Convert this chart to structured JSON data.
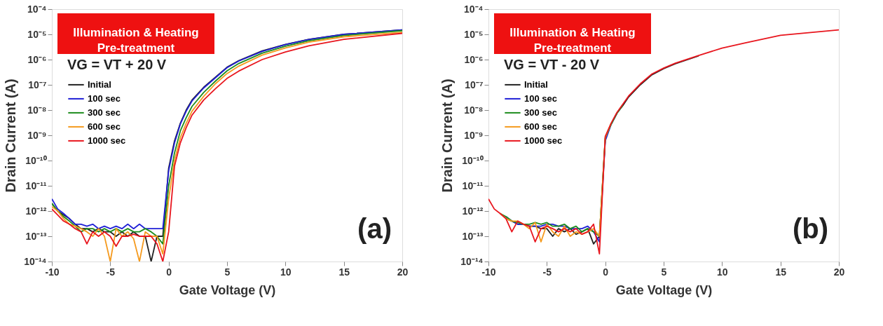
{
  "chart_data": [
    {
      "type": "line",
      "xlabel": "Gate Voltage (V)",
      "ylabel": "Drain Current (A)",
      "log": "y",
      "legend": "top left",
      "annotations": [
        "Illumination & Heating\nPre-treatment",
        "VG = VT + 20 V",
        "(a)"
      ],
      "xlim": [
        -10,
        20
      ],
      "xticks": [
        -10,
        -5,
        0,
        5,
        10,
        15,
        20
      ],
      "ylim": [
        1e-14,
        0.0001
      ],
      "yticks": [
        {
          "value": 1e-14,
          "label": "10⁻¹⁴"
        },
        {
          "value": 1e-13,
          "label": "10⁻¹³"
        },
        {
          "value": 1e-12,
          "label": "10⁻¹²"
        },
        {
          "value": 1e-11,
          "label": "10⁻¹¹"
        },
        {
          "value": 1e-10,
          "label": "10⁻¹⁰"
        },
        {
          "value": 1e-09,
          "label": "10⁻⁹"
        },
        {
          "value": 1e-08,
          "label": "10⁻⁸"
        },
        {
          "value": 1e-07,
          "label": "10⁻⁷"
        },
        {
          "value": 1e-06,
          "label": "10⁻⁶"
        },
        {
          "value": 1e-05,
          "label": "10⁻⁵"
        },
        {
          "value": 0.0001,
          "label": "10⁻⁴"
        }
      ],
      "x": [
        -10,
        -9.5,
        -9,
        -8.5,
        -8,
        -7.5,
        -7,
        -6.5,
        -6,
        -5.5,
        -5,
        -4.5,
        -4,
        -3.5,
        -3,
        -2.5,
        -2,
        -1.5,
        -1,
        -0.5,
        0,
        0.5,
        1,
        1.5,
        2,
        3,
        4,
        5,
        6,
        8,
        10,
        12,
        15,
        20
      ],
      "series": [
        {
          "name": "Initial",
          "color": "#222222",
          "values": [
            2e-12,
            1e-12,
            7e-13,
            5e-13,
            3e-13,
            2e-13,
            2e-13,
            1.5e-13,
            2e-13,
            1.5e-13,
            1.5e-13,
            1e-13,
            1.5e-13,
            1e-13,
            1.5e-13,
            1e-13,
            1e-13,
            1e-14,
            1e-13,
            1e-13,
            5e-11,
            6e-10,
            3e-09,
            1e-08,
            2.5e-08,
            8e-08,
            2e-07,
            5e-07,
            9e-07,
            2.2e-06,
            4e-06,
            6.3e-06,
            1e-05,
            1.5e-05
          ]
        },
        {
          "name": "100 sec",
          "color": "#1f1fd6",
          "values": [
            3e-12,
            1.2e-12,
            8e-13,
            5e-13,
            3e-13,
            3e-13,
            2.5e-13,
            3e-13,
            2e-13,
            2.5e-13,
            2e-13,
            2.5e-13,
            2e-13,
            3e-13,
            2e-13,
            3e-13,
            2e-13,
            2e-13,
            2e-13,
            2e-13,
            4e-11,
            5e-10,
            2.8e-09,
            9e-09,
            2.3e-08,
            7.5e-08,
            1.9e-07,
            4.8e-07,
            8.8e-07,
            2.1e-06,
            3.9e-06,
            6.2e-06,
            1e-05,
            1.5e-05
          ]
        },
        {
          "name": "300 sec",
          "color": "#1e8c1e",
          "values": [
            2e-12,
            1e-12,
            6e-13,
            4e-13,
            2.5e-13,
            1.5e-13,
            2e-13,
            2e-13,
            1.5e-13,
            2e-13,
            1.5e-13,
            2e-13,
            1.5e-13,
            2e-13,
            1.5e-13,
            1.5e-13,
            2e-13,
            1.5e-13,
            1e-13,
            5e-14,
            1e-11,
            2e-10,
            1.5e-09,
            5e-09,
            1.4e-08,
            5e-08,
            1.4e-07,
            3.6e-07,
            7e-07,
            1.8e-06,
            3.4e-06,
            5.6e-06,
            9e-06,
            1.4e-05
          ]
        },
        {
          "name": "600 sec",
          "color": "#f59a1e",
          "values": [
            1.5e-12,
            1e-12,
            5e-13,
            3e-13,
            2.5e-13,
            2e-13,
            1.5e-13,
            1e-13,
            2e-13,
            1e-13,
            1e-14,
            2e-13,
            1e-13,
            1.5e-13,
            8e-14,
            1e-14,
            1.5e-13,
            1e-13,
            1e-13,
            2e-14,
            3e-12,
            1e-10,
            8e-10,
            3e-09,
            9e-09,
            3.5e-08,
            1.1e-07,
            2.8e-07,
            5.5e-07,
            1.5e-06,
            2.9e-06,
            4.9e-06,
            8e-06,
            1.2e-05
          ]
        },
        {
          "name": "1000 sec",
          "color": "#e8161e",
          "values": [
            1.2e-12,
            7e-13,
            4e-13,
            3e-13,
            2e-13,
            1.5e-13,
            5e-14,
            1.5e-13,
            1e-13,
            1.5e-13,
            1e-13,
            4e-14,
            1e-13,
            1e-13,
            1.2e-13,
            1e-13,
            1e-13,
            1e-13,
            5e-14,
            1e-14,
            1.5e-13,
            6e-11,
            5e-10,
            2e-09,
            6.3e-09,
            2.5e-08,
            7e-08,
            1.8e-07,
            3.5e-07,
            1e-06,
            2e-06,
            3.5e-06,
            6.3e-06,
            1.1e-05
          ]
        }
      ]
    },
    {
      "type": "line",
      "xlabel": "Gate Voltage (V)",
      "ylabel": "Drain Current (A)",
      "log": "y",
      "legend": "top left",
      "annotations": [
        "Illumination & Heating\nPre-treatment",
        "VG = VT - 20 V",
        "(b)"
      ],
      "xlim": [
        -10,
        20
      ],
      "xticks": [
        -10,
        -5,
        0,
        5,
        10,
        15,
        20
      ],
      "ylim": [
        1e-14,
        0.0001
      ],
      "yticks": [
        {
          "value": 1e-14,
          "label": "10⁻¹⁴"
        },
        {
          "value": 1e-13,
          "label": "10⁻¹³"
        },
        {
          "value": 1e-12,
          "label": "10⁻¹²"
        },
        {
          "value": 1e-11,
          "label": "10⁻¹¹"
        },
        {
          "value": 1e-10,
          "label": "10⁻¹⁰"
        },
        {
          "value": 1e-09,
          "label": "10⁻⁹"
        },
        {
          "value": 1e-08,
          "label": "10⁻⁸"
        },
        {
          "value": 1e-07,
          "label": "10⁻⁷"
        },
        {
          "value": 1e-06,
          "label": "10⁻⁶"
        },
        {
          "value": 1e-05,
          "label": "10⁻⁵"
        },
        {
          "value": 0.0001,
          "label": "10⁻⁴"
        }
      ],
      "x": [
        -10,
        -9.5,
        -9,
        -8.5,
        -8,
        -7.5,
        -7,
        -6.5,
        -6,
        -5.5,
        -5,
        -4.5,
        -4,
        -3.5,
        -3,
        -2.5,
        -2,
        -1.5,
        -1,
        -0.5,
        0,
        0.5,
        1,
        1.5,
        2,
        3,
        4,
        5,
        6,
        8,
        10,
        12,
        15,
        20
      ],
      "series": [
        {
          "name": "Initial",
          "color": "#222222",
          "values": [
            null,
            null,
            null,
            5e-13,
            4e-13,
            3e-13,
            3e-13,
            2.5e-13,
            2.5e-13,
            2e-13,
            2e-13,
            1e-13,
            2e-13,
            1.5e-13,
            2e-13,
            1.2e-13,
            1.5e-13,
            2e-13,
            5e-14,
            1e-13,
            7e-10,
            2.8e-09,
            7.5e-09,
            1.5e-08,
            3.3e-08,
            1e-07,
            2.5e-07,
            4.4e-07,
            6.9e-07,
            1.4e-06,
            null,
            null,
            null,
            null
          ]
        },
        {
          "name": "100 sec",
          "color": "#1f1fd6",
          "values": [
            null,
            null,
            null,
            6e-13,
            4e-13,
            3e-13,
            3e-13,
            2.5e-13,
            2.5e-13,
            2.5e-13,
            3e-13,
            3e-13,
            2.5e-13,
            2.5e-13,
            2e-13,
            2e-13,
            2e-13,
            2.5e-13,
            1.5e-13,
            6e-14,
            6e-10,
            2.7e-09,
            7.5e-09,
            null,
            null,
            null,
            null,
            null,
            null,
            null,
            null,
            null,
            null,
            null
          ]
        },
        {
          "name": "300 sec",
          "color": "#1e8c1e",
          "values": [
            null,
            null,
            8e-13,
            6e-13,
            4e-13,
            3.5e-13,
            3e-13,
            3e-13,
            3.5e-13,
            3e-13,
            3.5e-13,
            2.5e-13,
            2.5e-13,
            3e-13,
            2e-13,
            2.5e-13,
            1.5e-13,
            2e-13,
            1.5e-13,
            1e-13,
            8e-10,
            2.7e-09,
            7.5e-09,
            1.6e-08,
            null,
            null,
            null,
            null,
            null,
            null,
            null,
            null,
            null,
            null
          ]
        },
        {
          "name": "600 sec",
          "color": "#f59a1e",
          "values": [
            null,
            null,
            8e-13,
            5e-13,
            4e-13,
            4e-13,
            3e-13,
            2e-13,
            3.5e-13,
            6e-14,
            3e-13,
            1.5e-13,
            1e-13,
            2.5e-13,
            1e-13,
            1.5e-13,
            1.2e-13,
            1.5e-13,
            2e-13,
            1e-13,
            8e-10,
            3e-09,
            null,
            null,
            null,
            null,
            null,
            null,
            null,
            null,
            null,
            null,
            null,
            null
          ]
        },
        {
          "name": "1000 sec",
          "color": "#e8161e",
          "values": [
            3e-12,
            1.2e-12,
            8e-13,
            5e-13,
            1.5e-13,
            4e-13,
            3e-13,
            2.5e-13,
            6e-14,
            2e-13,
            2.5e-13,
            2e-13,
            1.5e-13,
            2e-13,
            1.5e-13,
            2e-13,
            1.2e-13,
            1.5e-13,
            3e-13,
            2e-14,
            9e-10,
            3e-09,
            8e-09,
            1.7e-08,
            3.6e-08,
            1.1e-07,
            2.7e-07,
            4.6e-07,
            7.2e-07,
            1.45e-06,
            2.85e-06,
            4.6e-06,
            9.1e-06,
            1.5e-05
          ]
        }
      ]
    }
  ]
}
